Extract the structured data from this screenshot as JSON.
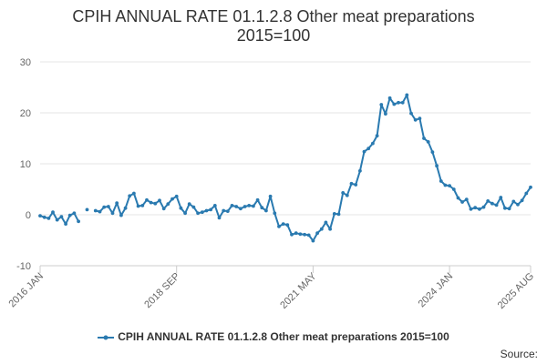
{
  "chart_data": {
    "type": "line",
    "title": "CPIH ANNUAL RATE 01.1.2.8 Other meat preparations 2015=100",
    "title_lines": [
      "CPIH ANNUAL RATE 01.1.2.8 Other meat preparations",
      "2015=100"
    ],
    "xlabel": "",
    "ylabel": "",
    "ylim": [
      -10,
      30
    ],
    "yticks": [
      -10,
      0,
      10,
      20,
      30
    ],
    "x_start": "2016 JAN",
    "x_end": "2025 AUG",
    "xticks": [
      {
        "label": "2016 JAN",
        "index": 0
      },
      {
        "label": "2018 SEP",
        "index": 32
      },
      {
        "label": "2021 MAY",
        "index": 64
      },
      {
        "label": "2024 JAN",
        "index": 96
      },
      {
        "label": "2025 AUG",
        "index": 115
      }
    ],
    "series": [
      {
        "name": "CPIH ANNUAL RATE 01.1.2.8 Other meat preparations 2015=100",
        "color": "#2a7ab0",
        "values": [
          -0.2,
          -0.5,
          -0.7,
          0.5,
          -1.0,
          -0.4,
          -1.8,
          -0.1,
          0.3,
          -1.3,
          null,
          1.0,
          null,
          0.8,
          0.6,
          1.5,
          1.6,
          0.3,
          2.3,
          -0.1,
          1.3,
          3.7,
          4.2,
          1.7,
          1.8,
          2.9,
          2.4,
          2.2,
          2.8,
          1.2,
          2.1,
          3.1,
          3.6,
          1.3,
          0.3,
          2.1,
          1.5,
          0.3,
          0.5,
          0.8,
          1.0,
          1.8,
          -0.6,
          0.8,
          0.7,
          1.8,
          1.6,
          1.2,
          1.6,
          1.8,
          1.7,
          2.9,
          1.4,
          0.8,
          3.6,
          0.3,
          -2.3,
          -1.8,
          -2.0,
          -3.9,
          -3.6,
          -3.8,
          -3.9,
          -4.0,
          -5.1,
          -3.6,
          -2.8,
          -1.5,
          -2.8,
          0.2,
          0.1,
          4.3,
          3.8,
          6.1,
          5.9,
          8.6,
          12.4,
          13.0,
          14.0,
          15.5,
          21.6,
          19.8,
          22.9,
          21.7,
          22.0,
          22.0,
          23.5,
          19.9,
          18.6,
          18.9,
          15.0,
          14.3,
          12.3,
          9.6,
          6.6,
          5.8,
          5.7,
          5.0,
          3.3,
          2.5,
          3.0,
          1.1,
          1.4,
          1.1,
          1.5,
          2.7,
          2.2,
          1.9,
          3.4,
          1.3,
          1.2,
          2.6,
          2.0,
          2.8,
          4.2,
          5.4
        ]
      }
    ],
    "legend_position": "bottom",
    "grid": true
  },
  "legend_label": "CPIH ANNUAL RATE 01.1.2.8 Other meat preparations 2015=100",
  "source_label": "Source:"
}
